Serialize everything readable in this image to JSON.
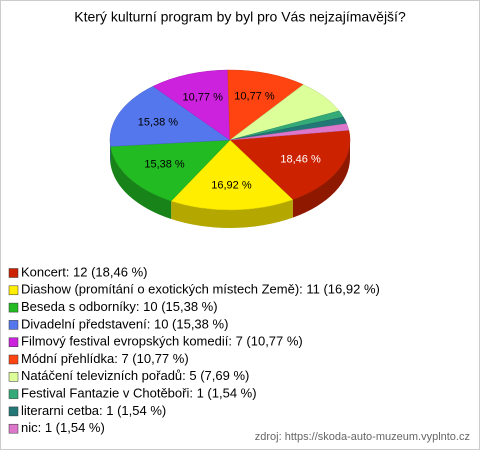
{
  "chart_data": {
    "type": "pie",
    "title": "Který kulturní program by byl pro Vás nejzajímavější?",
    "categories": [
      "Koncert",
      "Diashow",
      "Beseda s odborníky",
      "Divadelní představení",
      "Filmový festival evropských komedií",
      "Módní přehlídka",
      "Natáčení televizních pořadů",
      "Festival Fantazie v Chotěboři",
      "literarni cetba",
      "nic"
    ],
    "values": [
      18.46,
      16.92,
      15.38,
      15.38,
      10.77,
      10.77,
      7.69,
      1.54,
      1.54,
      1.54
    ],
    "value_labels": [
      "18,46 %",
      "16,92 %",
      "15,38 %",
      "15,38 %",
      "10,77 %",
      "10,77 %",
      null,
      null,
      null,
      null
    ],
    "colors": [
      "#cc2200",
      "#ffee00",
      "#22bb22",
      "#5577ee",
      "#cc22dd",
      "#ff4411",
      "#ddff99",
      "#33aa77",
      "#227777",
      "#dd77cc"
    ],
    "legend": [
      "Koncert: 12 (18,46 %)",
      "Diashow (promítání o exotických místech Země): 11 (16,92 %)",
      "Beseda s odborníky: 10 (15,38 %)",
      "Divadelní představení: 10 (15,38 %)",
      "Filmový festival evropských komedií: 7 (10,77 %)",
      "Módní přehlídka: 7 (10,77 %)",
      "Natáčení televizních pořadů: 5 (7,69 %)",
      "Festival Fantazie v Chotěboři: 1 (1,54 %)",
      "literarni cetba: 1 (1,54 %)",
      "nic: 1 (1,54 %)"
    ],
    "source": "zdroj: https://skoda-auto-muzeum.vyplnto.cz"
  }
}
